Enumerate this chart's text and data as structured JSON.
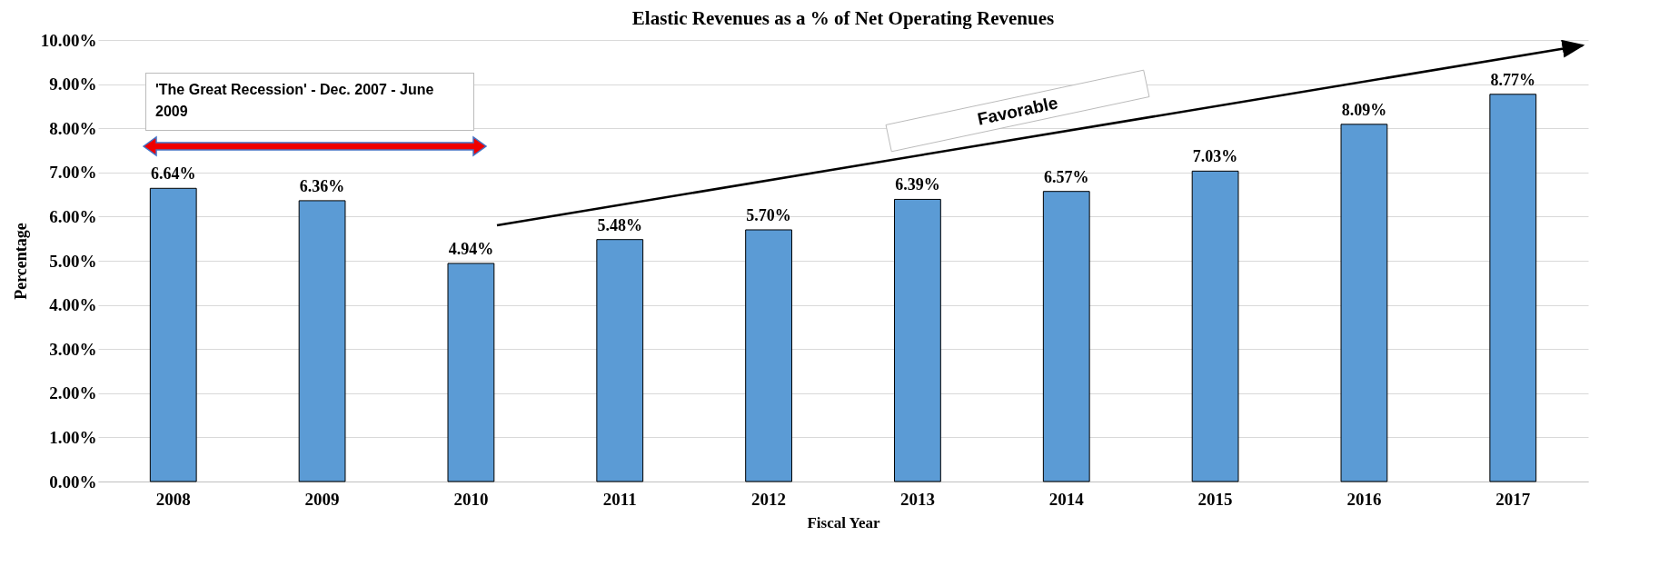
{
  "chart_data": {
    "type": "bar",
    "title": "Elastic Revenues as a % of Net Operating Revenues",
    "xlabel": "Fiscal Year",
    "ylabel": "Percentage",
    "categories": [
      "2008",
      "2009",
      "2010",
      "2011",
      "2012",
      "2013",
      "2014",
      "2015",
      "2016",
      "2017"
    ],
    "values": [
      6.64,
      6.36,
      4.94,
      5.48,
      5.7,
      6.39,
      6.57,
      7.03,
      8.09,
      8.77
    ],
    "value_labels": [
      "6.64%",
      "6.36%",
      "4.94%",
      "5.48%",
      "5.70%",
      "6.39%",
      "6.57%",
      "7.03%",
      "8.09%",
      "8.77%"
    ],
    "color": "#5b9bd5",
    "ylim": [
      0,
      10
    ],
    "yticks": [
      {
        "value": 0,
        "label": "0.00%"
      },
      {
        "value": 1,
        "label": "1.00%"
      },
      {
        "value": 2,
        "label": "2.00%"
      },
      {
        "value": 3,
        "label": "3.00%"
      },
      {
        "value": 4,
        "label": "4.00%"
      },
      {
        "value": 5,
        "label": "5.00%"
      },
      {
        "value": 6,
        "label": "6.00%"
      },
      {
        "value": 7,
        "label": "7.00%"
      },
      {
        "value": 8,
        "label": "8.00%"
      },
      {
        "value": 9,
        "label": "9.00%"
      },
      {
        "value": 10,
        "label": "10.00%"
      }
    ],
    "grid": "y",
    "annotations": [
      "'The Great Recession' - Dec. 2007 - June 2009",
      "Favorable"
    ]
  }
}
